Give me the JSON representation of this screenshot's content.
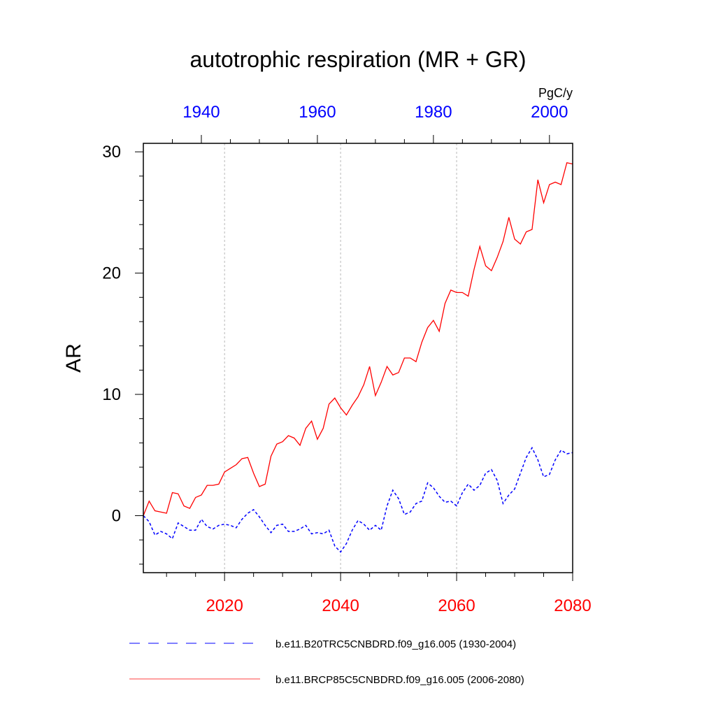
{
  "chart_data": {
    "type": "line",
    "title": "autotrophic respiration (MR + GR)",
    "units": "PgC/y",
    "ylabel": "AR",
    "ylim": [
      -4.7,
      30.7
    ],
    "yticks": [
      0,
      10,
      20,
      30
    ],
    "bottom_axis": {
      "range": [
        2006,
        2080
      ],
      "ticks": [
        2020,
        2040,
        2060,
        2080
      ],
      "color": "#ff0000"
    },
    "top_axis": {
      "range": [
        1930,
        2004
      ],
      "ticks": [
        1940,
        1960,
        1980,
        2000
      ],
      "color": "#0000ff"
    },
    "gridlines_x": [
      2020,
      2040,
      2060
    ],
    "series": [
      {
        "name": "b.e11.B20TRC5CNBDRD.f09_g16.005 (1930-2004)",
        "style": "dashed",
        "color": "#0000ff",
        "x_start": 2006,
        "values": [
          0.0,
          -0.5,
          -1.6,
          -1.3,
          -1.5,
          -1.9,
          -0.6,
          -0.9,
          -1.2,
          -1.2,
          -0.3,
          -0.9,
          -1.1,
          -0.8,
          -0.7,
          -0.8,
          -1.0,
          -0.3,
          0.2,
          0.5,
          -0.1,
          -0.8,
          -1.4,
          -0.8,
          -0.7,
          -1.3,
          -1.3,
          -1.1,
          -0.8,
          -1.5,
          -1.4,
          -1.5,
          -1.2,
          -2.5,
          -3.0,
          -2.3,
          -1.2,
          -0.4,
          -0.7,
          -1.2,
          -0.8,
          -1.2,
          0.8,
          2.1,
          1.4,
          0.1,
          0.3,
          1.0,
          1.2,
          2.7,
          2.3,
          1.6,
          1.1,
          1.2,
          0.8,
          1.9,
          2.6,
          2.1,
          2.5,
          3.5,
          3.8,
          2.9,
          1.0,
          1.7,
          2.2,
          3.5,
          4.8,
          5.6,
          4.6,
          3.2,
          3.4,
          4.6,
          5.4,
          5.1,
          5.2
        ]
      },
      {
        "name": "b.e11.BRCP85C5CNBDRD.f09_g16.005 (2006-2080)",
        "style": "solid",
        "color": "#ff0000",
        "x_start": 2006,
        "values": [
          0.0,
          1.2,
          0.4,
          0.3,
          0.2,
          1.9,
          1.8,
          0.8,
          0.6,
          1.5,
          1.7,
          2.5,
          2.5,
          2.6,
          3.6,
          3.9,
          4.2,
          4.7,
          4.8,
          3.5,
          2.4,
          2.6,
          4.9,
          5.9,
          6.1,
          6.6,
          6.4,
          5.8,
          7.2,
          7.8,
          6.3,
          7.2,
          9.2,
          9.7,
          8.9,
          8.3,
          9.1,
          9.8,
          10.8,
          12.3,
          9.9,
          11.0,
          12.3,
          11.6,
          11.8,
          13.0,
          13.0,
          12.7,
          14.3,
          15.5,
          16.1,
          15.2,
          17.5,
          18.6,
          18.4,
          18.4,
          18.1,
          20.3,
          22.2,
          20.6,
          20.2,
          21.3,
          22.6,
          24.6,
          22.8,
          22.4,
          23.4,
          23.6,
          27.7,
          25.8,
          27.3,
          27.5,
          27.3,
          29.1,
          29.0
        ]
      }
    ],
    "legend_placement": "bottom"
  }
}
